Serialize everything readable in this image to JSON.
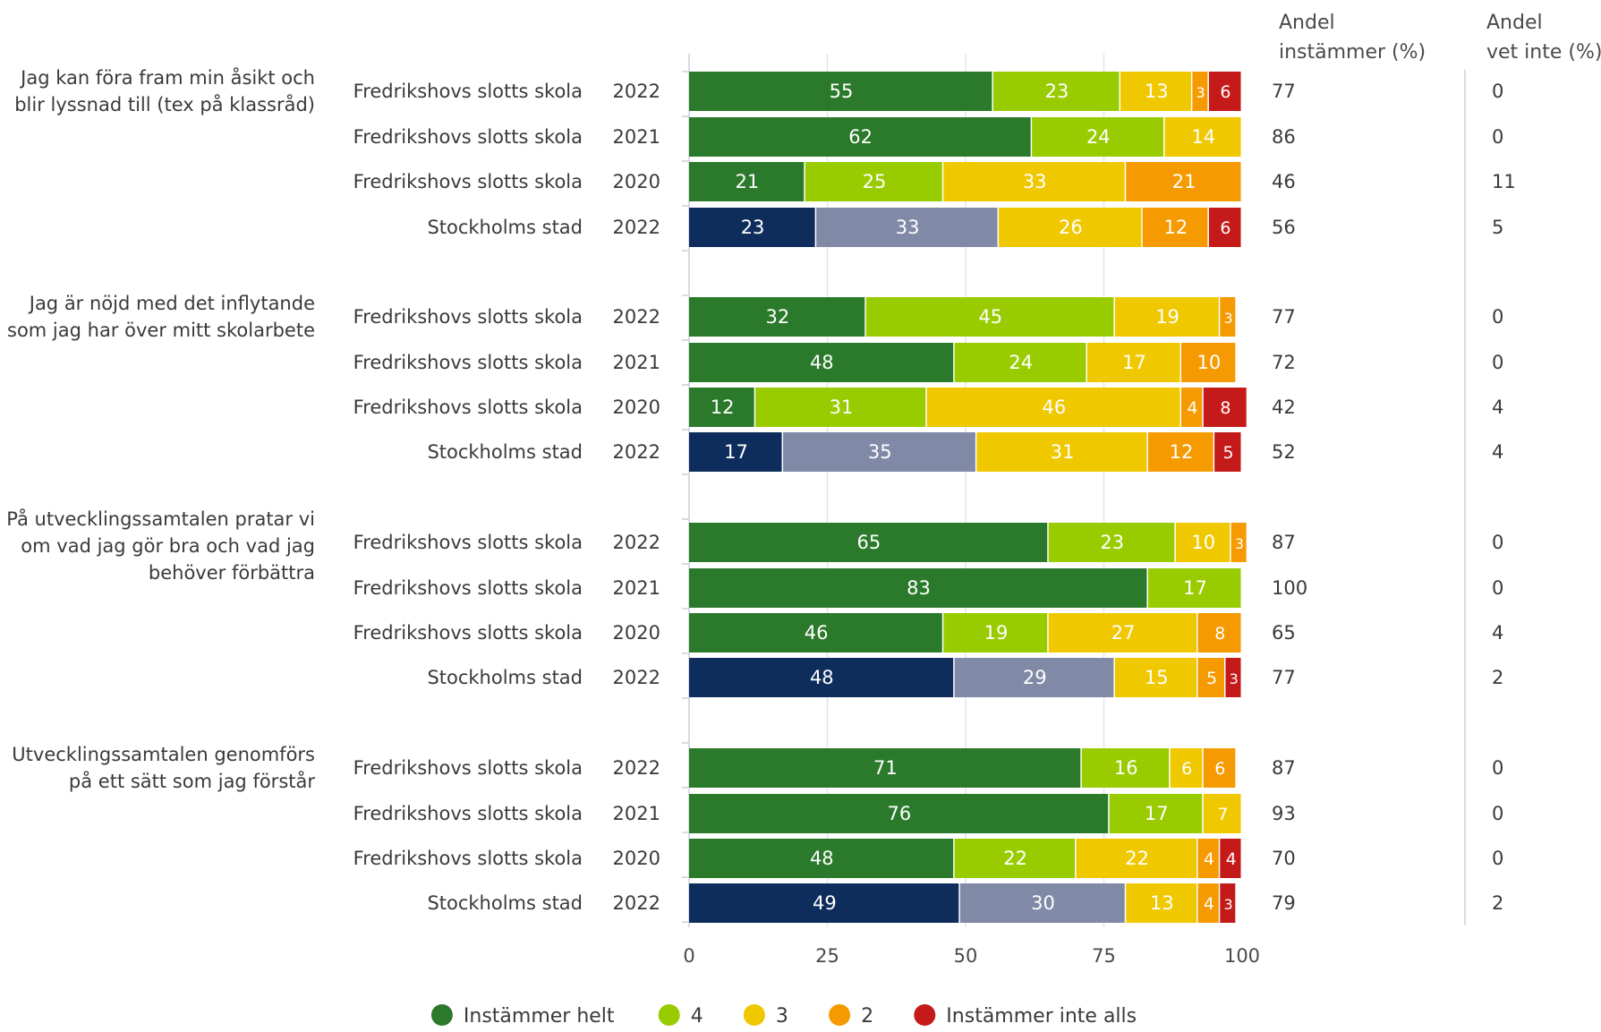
{
  "chart_data": {
    "type": "bar",
    "orientation": "horizontal",
    "stacked": true,
    "xlim": [
      0,
      100
    ],
    "x_ticks": [
      "0",
      "25",
      "50",
      "75",
      "100"
    ],
    "grid": true,
    "legend_position": "bottom",
    "legend": [
      {
        "label": "Instämmer helt",
        "color": "#2b7a2b"
      },
      {
        "label": "4",
        "color": "#99cc00"
      },
      {
        "label": "3",
        "color": "#f0c800"
      },
      {
        "label": "2",
        "color": "#f59a00"
      },
      {
        "label": "Instämmer inte alls",
        "color": "#c41a1a"
      }
    ],
    "stockholm_colors": [
      "#0f2d5c",
      "#8089a6",
      "#f0c800",
      "#f59a00",
      "#c41a1a"
    ],
    "columns": {
      "agree_header": [
        "Andel",
        "instämmer (%)"
      ],
      "dontknow_header": [
        "Andel",
        "vet inte (%)"
      ]
    },
    "groups": [
      {
        "question": [
          "Jag kan föra fram min åsikt och",
          "blir lyssnad till (tex på klassråd)"
        ],
        "rows": [
          {
            "unit": "Fredrikshovs slotts skola",
            "year": "2022",
            "values": [
              55,
              23,
              13,
              3,
              6
            ],
            "agree": "77",
            "dontknow": "0"
          },
          {
            "unit": "Fredrikshovs slotts skola",
            "year": "2021",
            "values": [
              62,
              24,
              14,
              0,
              0
            ],
            "agree": "86",
            "dontknow": "0"
          },
          {
            "unit": "Fredrikshovs slotts skola",
            "year": "2020",
            "values": [
              21,
              25,
              33,
              21,
              0
            ],
            "agree": "46",
            "dontknow": "11"
          },
          {
            "unit": "Stockholms stad",
            "year": "2022",
            "values": [
              23,
              33,
              26,
              12,
              6
            ],
            "agree": "56",
            "dontknow": "5"
          }
        ]
      },
      {
        "question": [
          "Jag är nöjd med det inflytande",
          "som jag har över mitt skolarbete"
        ],
        "rows": [
          {
            "unit": "Fredrikshovs slotts skola",
            "year": "2022",
            "values": [
              32,
              45,
              19,
              3,
              0
            ],
            "agree": "77",
            "dontknow": "0"
          },
          {
            "unit": "Fredrikshovs slotts skola",
            "year": "2021",
            "values": [
              48,
              24,
              17,
              10,
              0
            ],
            "agree": "72",
            "dontknow": "0"
          },
          {
            "unit": "Fredrikshovs slotts skola",
            "year": "2020",
            "values": [
              12,
              31,
              46,
              4,
              8
            ],
            "agree": "42",
            "dontknow": "4"
          },
          {
            "unit": "Stockholms stad",
            "year": "2022",
            "values": [
              17,
              35,
              31,
              12,
              5
            ],
            "agree": "52",
            "dontknow": "4"
          }
        ]
      },
      {
        "question": [
          "På utvecklingssamtalen pratar vi",
          "om vad jag gör bra och vad jag",
          "behöver förbättra"
        ],
        "rows": [
          {
            "unit": "Fredrikshovs slotts skola",
            "year": "2022",
            "values": [
              65,
              23,
              10,
              3,
              0
            ],
            "agree": "87",
            "dontknow": "0"
          },
          {
            "unit": "Fredrikshovs slotts skola",
            "year": "2021",
            "values": [
              83,
              17,
              0,
              0,
              0
            ],
            "agree": "100",
            "dontknow": "0"
          },
          {
            "unit": "Fredrikshovs slotts skola",
            "year": "2020",
            "values": [
              46,
              19,
              27,
              8,
              0
            ],
            "agree": "65",
            "dontknow": "4"
          },
          {
            "unit": "Stockholms stad",
            "year": "2022",
            "values": [
              48,
              29,
              15,
              5,
              3
            ],
            "agree": "77",
            "dontknow": "2"
          }
        ]
      },
      {
        "question": [
          "Utvecklingssamtalen genomförs",
          "på ett sätt som jag förstår"
        ],
        "rows": [
          {
            "unit": "Fredrikshovs slotts skola",
            "year": "2022",
            "values": [
              71,
              16,
              6,
              6,
              0
            ],
            "agree": "87",
            "dontknow": "0"
          },
          {
            "unit": "Fredrikshovs slotts skola",
            "year": "2021",
            "values": [
              76,
              17,
              7,
              0,
              0
            ],
            "agree": "93",
            "dontknow": "0"
          },
          {
            "unit": "Fredrikshovs slotts skola",
            "year": "2020",
            "values": [
              48,
              22,
              22,
              4,
              4
            ],
            "agree": "70",
            "dontknow": "0"
          },
          {
            "unit": "Stockholms stad",
            "year": "2022",
            "values": [
              49,
              30,
              13,
              4,
              3
            ],
            "agree": "79",
            "dontknow": "2"
          }
        ]
      }
    ]
  }
}
